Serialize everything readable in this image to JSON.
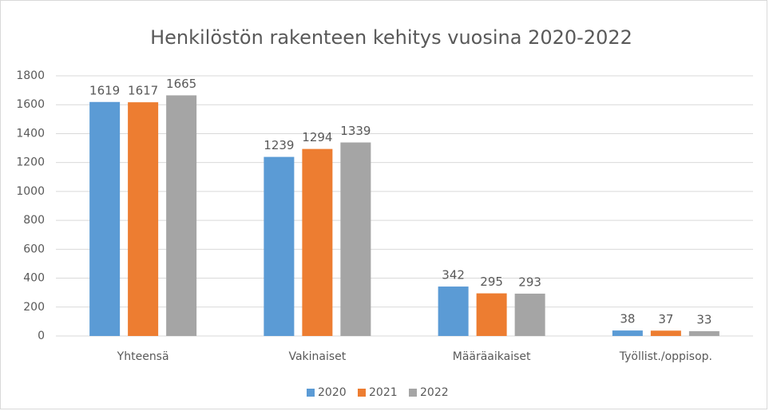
{
  "chart_data": {
    "type": "bar",
    "title": "Henkilöstön rakenteen kehitys vuosina 2020-2022",
    "categories": [
      "Yhteensä",
      "Vakinaiset",
      "Määräaikaiset",
      "Työllist./oppisop."
    ],
    "series": [
      {
        "name": "2020",
        "color": "#5b9bd5",
        "values": [
          1619,
          1239,
          342,
          38
        ]
      },
      {
        "name": "2021",
        "color": "#ed7d31",
        "values": [
          1617,
          1294,
          295,
          37
        ]
      },
      {
        "name": "2022",
        "color": "#a5a5a5",
        "values": [
          1665,
          1339,
          293,
          33
        ]
      }
    ],
    "ylim": [
      0,
      1800
    ],
    "yticks": [
      0,
      200,
      400,
      600,
      800,
      1000,
      1200,
      1400,
      1600,
      1800
    ],
    "grid": true,
    "legend": "bottom"
  }
}
